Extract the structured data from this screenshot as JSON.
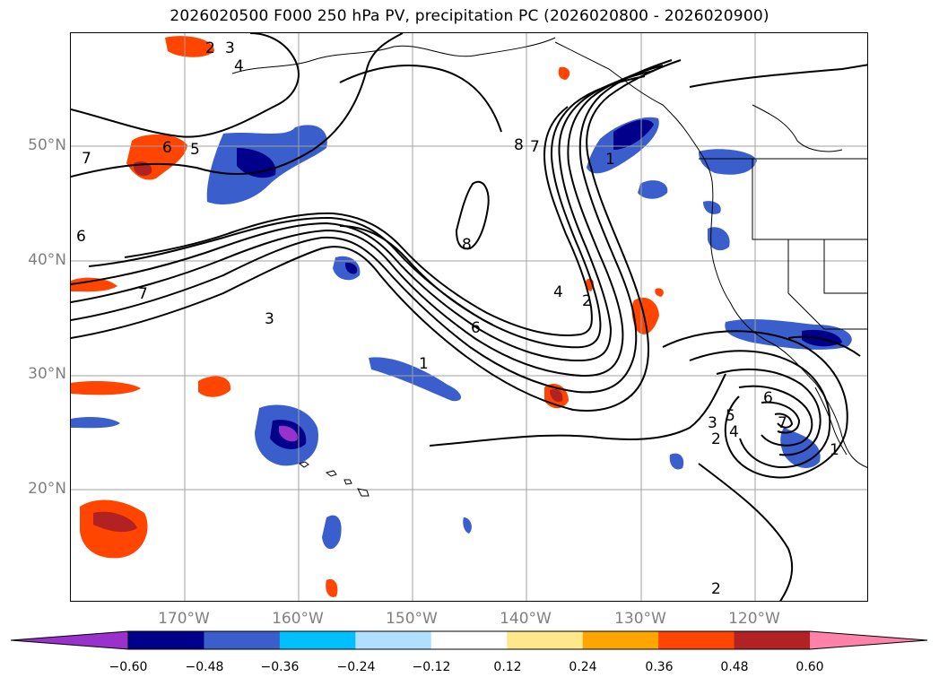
{
  "title": "2026020500 F000 250 hPa PV, precipitation PC (2026020800 - 2026020900)",
  "map": {
    "lat_labels": [
      "50°N",
      "40°N",
      "30°N",
      "20°N"
    ],
    "lon_labels": [
      "170°W",
      "160°W",
      "150°W",
      "140°W",
      "130°W",
      "120°W"
    ],
    "contour_labels": [
      {
        "text": "2"
      },
      {
        "text": "3"
      },
      {
        "text": "4"
      },
      {
        "text": "5"
      },
      {
        "text": "6"
      },
      {
        "text": "7"
      },
      {
        "text": "6"
      },
      {
        "text": "7"
      },
      {
        "text": "3"
      },
      {
        "text": "1"
      },
      {
        "text": "8"
      },
      {
        "text": "7"
      },
      {
        "text": "8"
      },
      {
        "text": "1"
      },
      {
        "text": "4"
      },
      {
        "text": "2"
      },
      {
        "text": "6"
      },
      {
        "text": "6"
      },
      {
        "text": "5"
      },
      {
        "text": "4"
      },
      {
        "text": "3"
      },
      {
        "text": "2"
      },
      {
        "text": "1"
      },
      {
        "text": "7"
      },
      {
        "text": "2"
      }
    ],
    "feature_colors": {
      "contour": "#000000",
      "coast": "#000000",
      "grid": "#a0a0a0"
    }
  },
  "colorbar": {
    "ticks": [
      "−0.60",
      "−0.48",
      "−0.36",
      "−0.24",
      "−0.12",
      "0.12",
      "0.24",
      "0.36",
      "0.48",
      "0.60"
    ],
    "colors": [
      "#9932cc",
      "#00008b",
      "#3a5fcd",
      "#00bfff",
      "#b0e0ff",
      "#ffffff",
      "#ffe88a",
      "#ffa500",
      "#ff4500",
      "#b22222",
      "#ff82ab"
    ]
  }
}
